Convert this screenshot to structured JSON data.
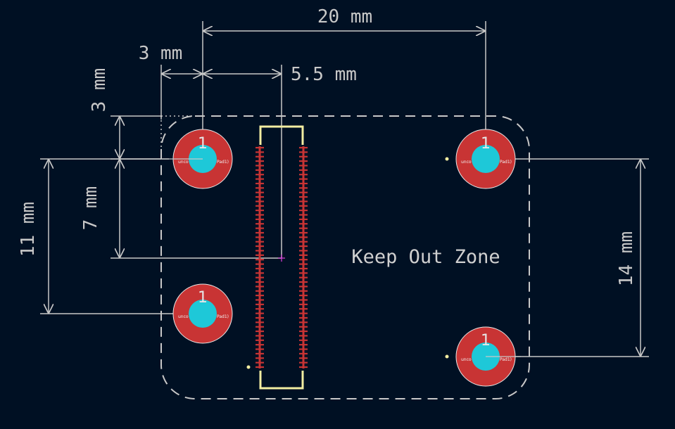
{
  "dimensions": {
    "top_width": "20 mm",
    "left_offset": "3 mm",
    "connector_offset": "5.5 mm",
    "top_vertical": "3 mm",
    "connector_vertical": "7 mm",
    "left_spacing": "11 mm",
    "right_spacing": "14 mm"
  },
  "zone_label": "Keep Out Zone",
  "pads": [
    {
      "number": "1",
      "net_left": "unco",
      "net_right": "Pad1)"
    },
    {
      "number": "1",
      "net_left": "unco",
      "net_right": "Pad1)"
    },
    {
      "number": "1",
      "net_left": "unco",
      "net_right": "Pad1)"
    },
    {
      "number": "1",
      "net_left": "unco",
      "net_right": "Pad1)"
    }
  ],
  "colors": {
    "background": "#001023",
    "pad_copper": "#c83434",
    "pad_hole": "#1ec8d8",
    "silkscreen": "#f2eda1",
    "dimension": "#c8c8c8",
    "anchor_marker": "#e040e0"
  }
}
